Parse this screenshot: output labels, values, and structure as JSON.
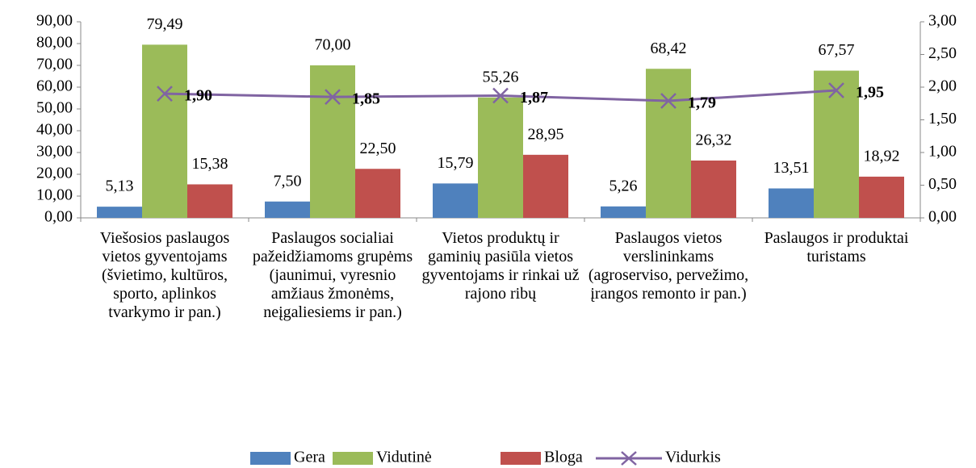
{
  "chart_data": {
    "type": "bar",
    "categories": [
      "Viešosios paslaugos vietos gyventojams (švietimo, kultūros, sporto, aplinkos tvarkymo ir pan.)",
      "Paslaugos socialiai pažeidžiamoms grupėms (jaunimui, vyresnio amžiaus žmonėms, neįgaliesiems ir pan.)",
      "Vietos produktų ir gaminių pasiūla vietos gyventojams ir rinkai už rajono ribų",
      "Paslaugos vietos verslininkams (agroserviso, pervežimo, įrangos remonto ir pan.)",
      "Paslaugos ir produktai turistams"
    ],
    "series": [
      {
        "name": "Gera",
        "color": "#4f81bd",
        "values": [
          5.13,
          7.5,
          15.79,
          5.26,
          13.51
        ],
        "value_labels": [
          "5,13",
          "7,50",
          "15,79",
          "5,26",
          "13,51"
        ]
      },
      {
        "name": "Vidutinė",
        "color": "#9bbb59",
        "values": [
          79.49,
          70.0,
          55.26,
          68.42,
          67.57
        ],
        "value_labels": [
          "79,49",
          "70,00",
          "55,26",
          "68,42",
          "67,57"
        ]
      },
      {
        "name": "Bloga",
        "color": "#c0504d",
        "values": [
          15.38,
          22.5,
          28.95,
          26.32,
          18.92
        ],
        "value_labels": [
          "15,38",
          "22,50",
          "28,95",
          "26,32",
          "18,92"
        ]
      },
      {
        "name": "Vidurkis",
        "color": "#8064a2",
        "type": "line",
        "axis": "y2",
        "values": [
          1.9,
          1.85,
          1.87,
          1.79,
          1.95
        ],
        "value_labels": [
          "1,90",
          "1,85",
          "1,87",
          "1,79",
          "1,95"
        ]
      }
    ],
    "ylim": [
      0,
      90
    ],
    "yticks": [
      {
        "value": 0,
        "label": "0,00"
      },
      {
        "value": 10,
        "label": "10,00"
      },
      {
        "value": 20,
        "label": "20,00"
      },
      {
        "value": 30,
        "label": "30,00"
      },
      {
        "value": 40,
        "label": "40,00"
      },
      {
        "value": 50,
        "label": "50,00"
      },
      {
        "value": 60,
        "label": "60,00"
      },
      {
        "value": 70,
        "label": "70,00"
      },
      {
        "value": 80,
        "label": "80,00"
      },
      {
        "value": 90,
        "label": "90,00"
      }
    ],
    "y2lim": [
      0,
      3
    ],
    "y2ticks": [
      {
        "value": 0,
        "label": "0,00"
      },
      {
        "value": 0.5,
        "label": "0,50"
      },
      {
        "value": 1,
        "label": "1,00"
      },
      {
        "value": 1.5,
        "label": "1,50"
      },
      {
        "value": 2,
        "label": "2,00"
      },
      {
        "value": 2.5,
        "label": "2,50"
      },
      {
        "value": 3,
        "label": "3,00"
      }
    ],
    "legend": "bottom",
    "grid": false
  }
}
